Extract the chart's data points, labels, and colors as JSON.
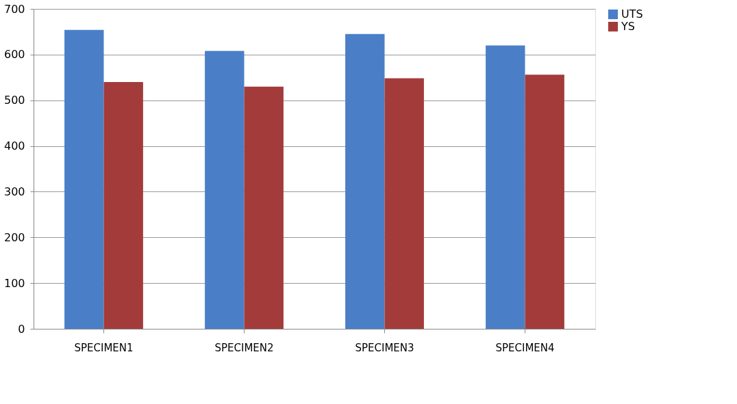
{
  "chart_data": {
    "type": "bar",
    "categories": [
      "SPECIMEN1",
      "SPECIMEN2",
      "SPECIMEN3",
      "SPECIMEN4"
    ],
    "series": [
      {
        "name": "UTS",
        "color": "#4a7fc8",
        "values": [
          654,
          608,
          645,
          620
        ]
      },
      {
        "name": "YS",
        "color": "#a33b3a",
        "values": [
          540,
          530,
          548,
          556
        ]
      }
    ],
    "ylim": [
      0,
      700
    ],
    "yticks": [
      0,
      100,
      200,
      300,
      400,
      500,
      600,
      700
    ],
    "grid": "y",
    "legend": "right"
  }
}
